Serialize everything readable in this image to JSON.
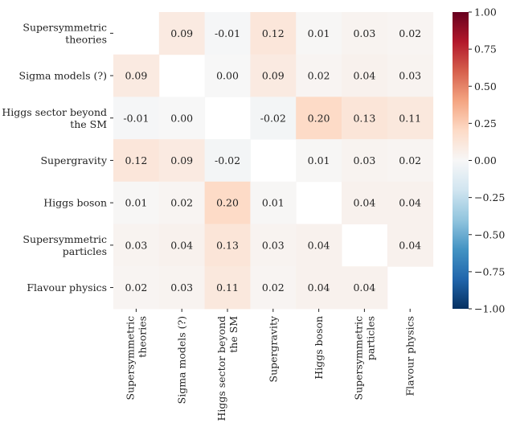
{
  "chart_data": {
    "type": "heatmap",
    "title": "",
    "rows": [
      "Supersymmetric theories",
      "Sigma models (?)",
      "Higgs sector beyond the SM",
      "Supergravity",
      "Higgs boson",
      "Supersymmetric particles",
      "Flavour physics"
    ],
    "cols": [
      "Supersymmetric theories",
      "Sigma models (?)",
      "Higgs sector beyond the SM",
      "Supergravity",
      "Higgs boson",
      "Supersymmetric particles",
      "Flavour physics"
    ],
    "row_labels": [
      [
        "Supersymmetric",
        "theories"
      ],
      [
        "Sigma models (?)"
      ],
      [
        "Higgs sector beyond",
        "the SM"
      ],
      [
        "Supergravity"
      ],
      [
        "Higgs boson"
      ],
      [
        "Supersymmetric",
        "particles"
      ],
      [
        "Flavour physics"
      ]
    ],
    "values": [
      [
        null,
        0.09,
        -0.01,
        0.12,
        0.01,
        0.03,
        0.02
      ],
      [
        0.09,
        null,
        0.0,
        0.09,
        0.02,
        0.04,
        0.03
      ],
      [
        -0.01,
        0.0,
        null,
        -0.02,
        0.2,
        0.13,
        0.11
      ],
      [
        0.12,
        0.09,
        -0.02,
        null,
        0.01,
        0.03,
        0.02
      ],
      [
        0.01,
        0.02,
        0.2,
        0.01,
        null,
        0.04,
        0.04
      ],
      [
        0.03,
        0.04,
        0.13,
        0.03,
        0.04,
        null,
        0.04
      ],
      [
        0.02,
        0.03,
        0.11,
        0.02,
        0.04,
        0.04,
        null
      ]
    ],
    "labels": [
      [
        "",
        "0.09",
        "-0.01",
        "0.12",
        "0.01",
        "0.03",
        "0.02"
      ],
      [
        "0.09",
        "",
        "0.00",
        "0.09",
        "0.02",
        "0.04",
        "0.03"
      ],
      [
        "-0.01",
        "0.00",
        "",
        "-0.02",
        "0.20",
        "0.13",
        "0.11"
      ],
      [
        "0.12",
        "0.09",
        "-0.02",
        "",
        "0.01",
        "0.03",
        "0.02"
      ],
      [
        "0.01",
        "0.02",
        "0.20",
        "0.01",
        "",
        "0.04",
        "0.04"
      ],
      [
        "0.03",
        "0.04",
        "0.13",
        "0.03",
        "0.04",
        "",
        "0.04"
      ],
      [
        "0.02",
        "0.03",
        "0.11",
        "0.02",
        "0.04",
        "0.04",
        ""
      ]
    ],
    "colormap": "RdBu_r",
    "vmin": -1.0,
    "vmax": 1.0,
    "colorbar": {
      "ticks": [
        1.0,
        0.75,
        0.5,
        0.25,
        0.0,
        -0.25,
        -0.5,
        -0.75,
        -1.0
      ],
      "tick_labels": [
        "1.00",
        "0.75",
        "0.50",
        "0.25",
        "0.00",
        "−0.25",
        "−0.50",
        "−0.75",
        "−1.00"
      ]
    },
    "colors": {
      "low": "#053061",
      "mid": "#f7f7f7",
      "high": "#67001f"
    }
  }
}
